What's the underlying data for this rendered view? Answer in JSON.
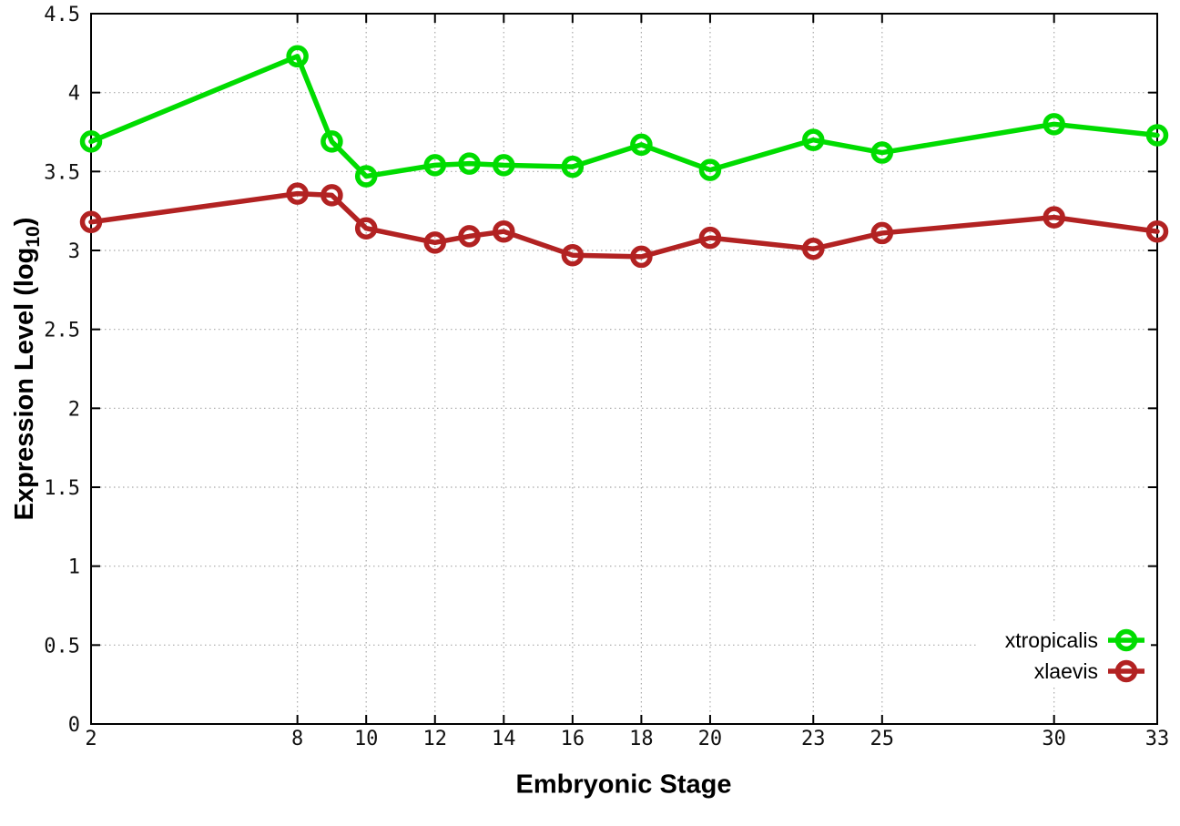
{
  "chart_data": {
    "type": "line",
    "title": "",
    "xlabel": "Embryonic Stage",
    "ylabel": "Expression Level (log_10)",
    "ylabel_parts": {
      "main": "Expression Level (log",
      "sub": "10",
      "close": ")"
    },
    "xlim": [
      2,
      33
    ],
    "ylim": [
      0,
      4.5
    ],
    "grid": true,
    "legend_position": "bottom-right-inside",
    "xticks": [
      2,
      8,
      10,
      12,
      14,
      16,
      18,
      20,
      23,
      25,
      30,
      33
    ],
    "xtick_labels": [
      "2",
      "8",
      "10",
      "12",
      "14",
      "16",
      "18",
      "20",
      "23",
      "25",
      "30",
      "33"
    ],
    "yticks": [
      0,
      0.5,
      1,
      1.5,
      2,
      2.5,
      3,
      3.5,
      4,
      4.5
    ],
    "ytick_labels": [
      "0",
      "0.5",
      "1",
      "1.5",
      "2",
      "2.5",
      "3",
      "3.5",
      "4",
      "4.5"
    ],
    "x": [
      2,
      8,
      9,
      10,
      12,
      13,
      14,
      16,
      18,
      20,
      23,
      25,
      30,
      33
    ],
    "series": [
      {
        "name": "xtropicalis",
        "color": "#00dc00",
        "values": [
          3.69,
          4.23,
          3.69,
          3.47,
          3.54,
          3.55,
          3.54,
          3.53,
          3.67,
          3.51,
          3.7,
          3.62,
          3.8,
          3.73
        ]
      },
      {
        "name": "xlaevis",
        "color": "#b22222",
        "values": [
          3.18,
          3.36,
          3.35,
          3.14,
          3.05,
          3.09,
          3.12,
          2.97,
          2.96,
          3.08,
          3.01,
          3.11,
          3.21,
          3.12
        ]
      }
    ]
  },
  "colors": {
    "border": "#000000",
    "grid": "#a8a8a8",
    "background": "#ffffff"
  }
}
